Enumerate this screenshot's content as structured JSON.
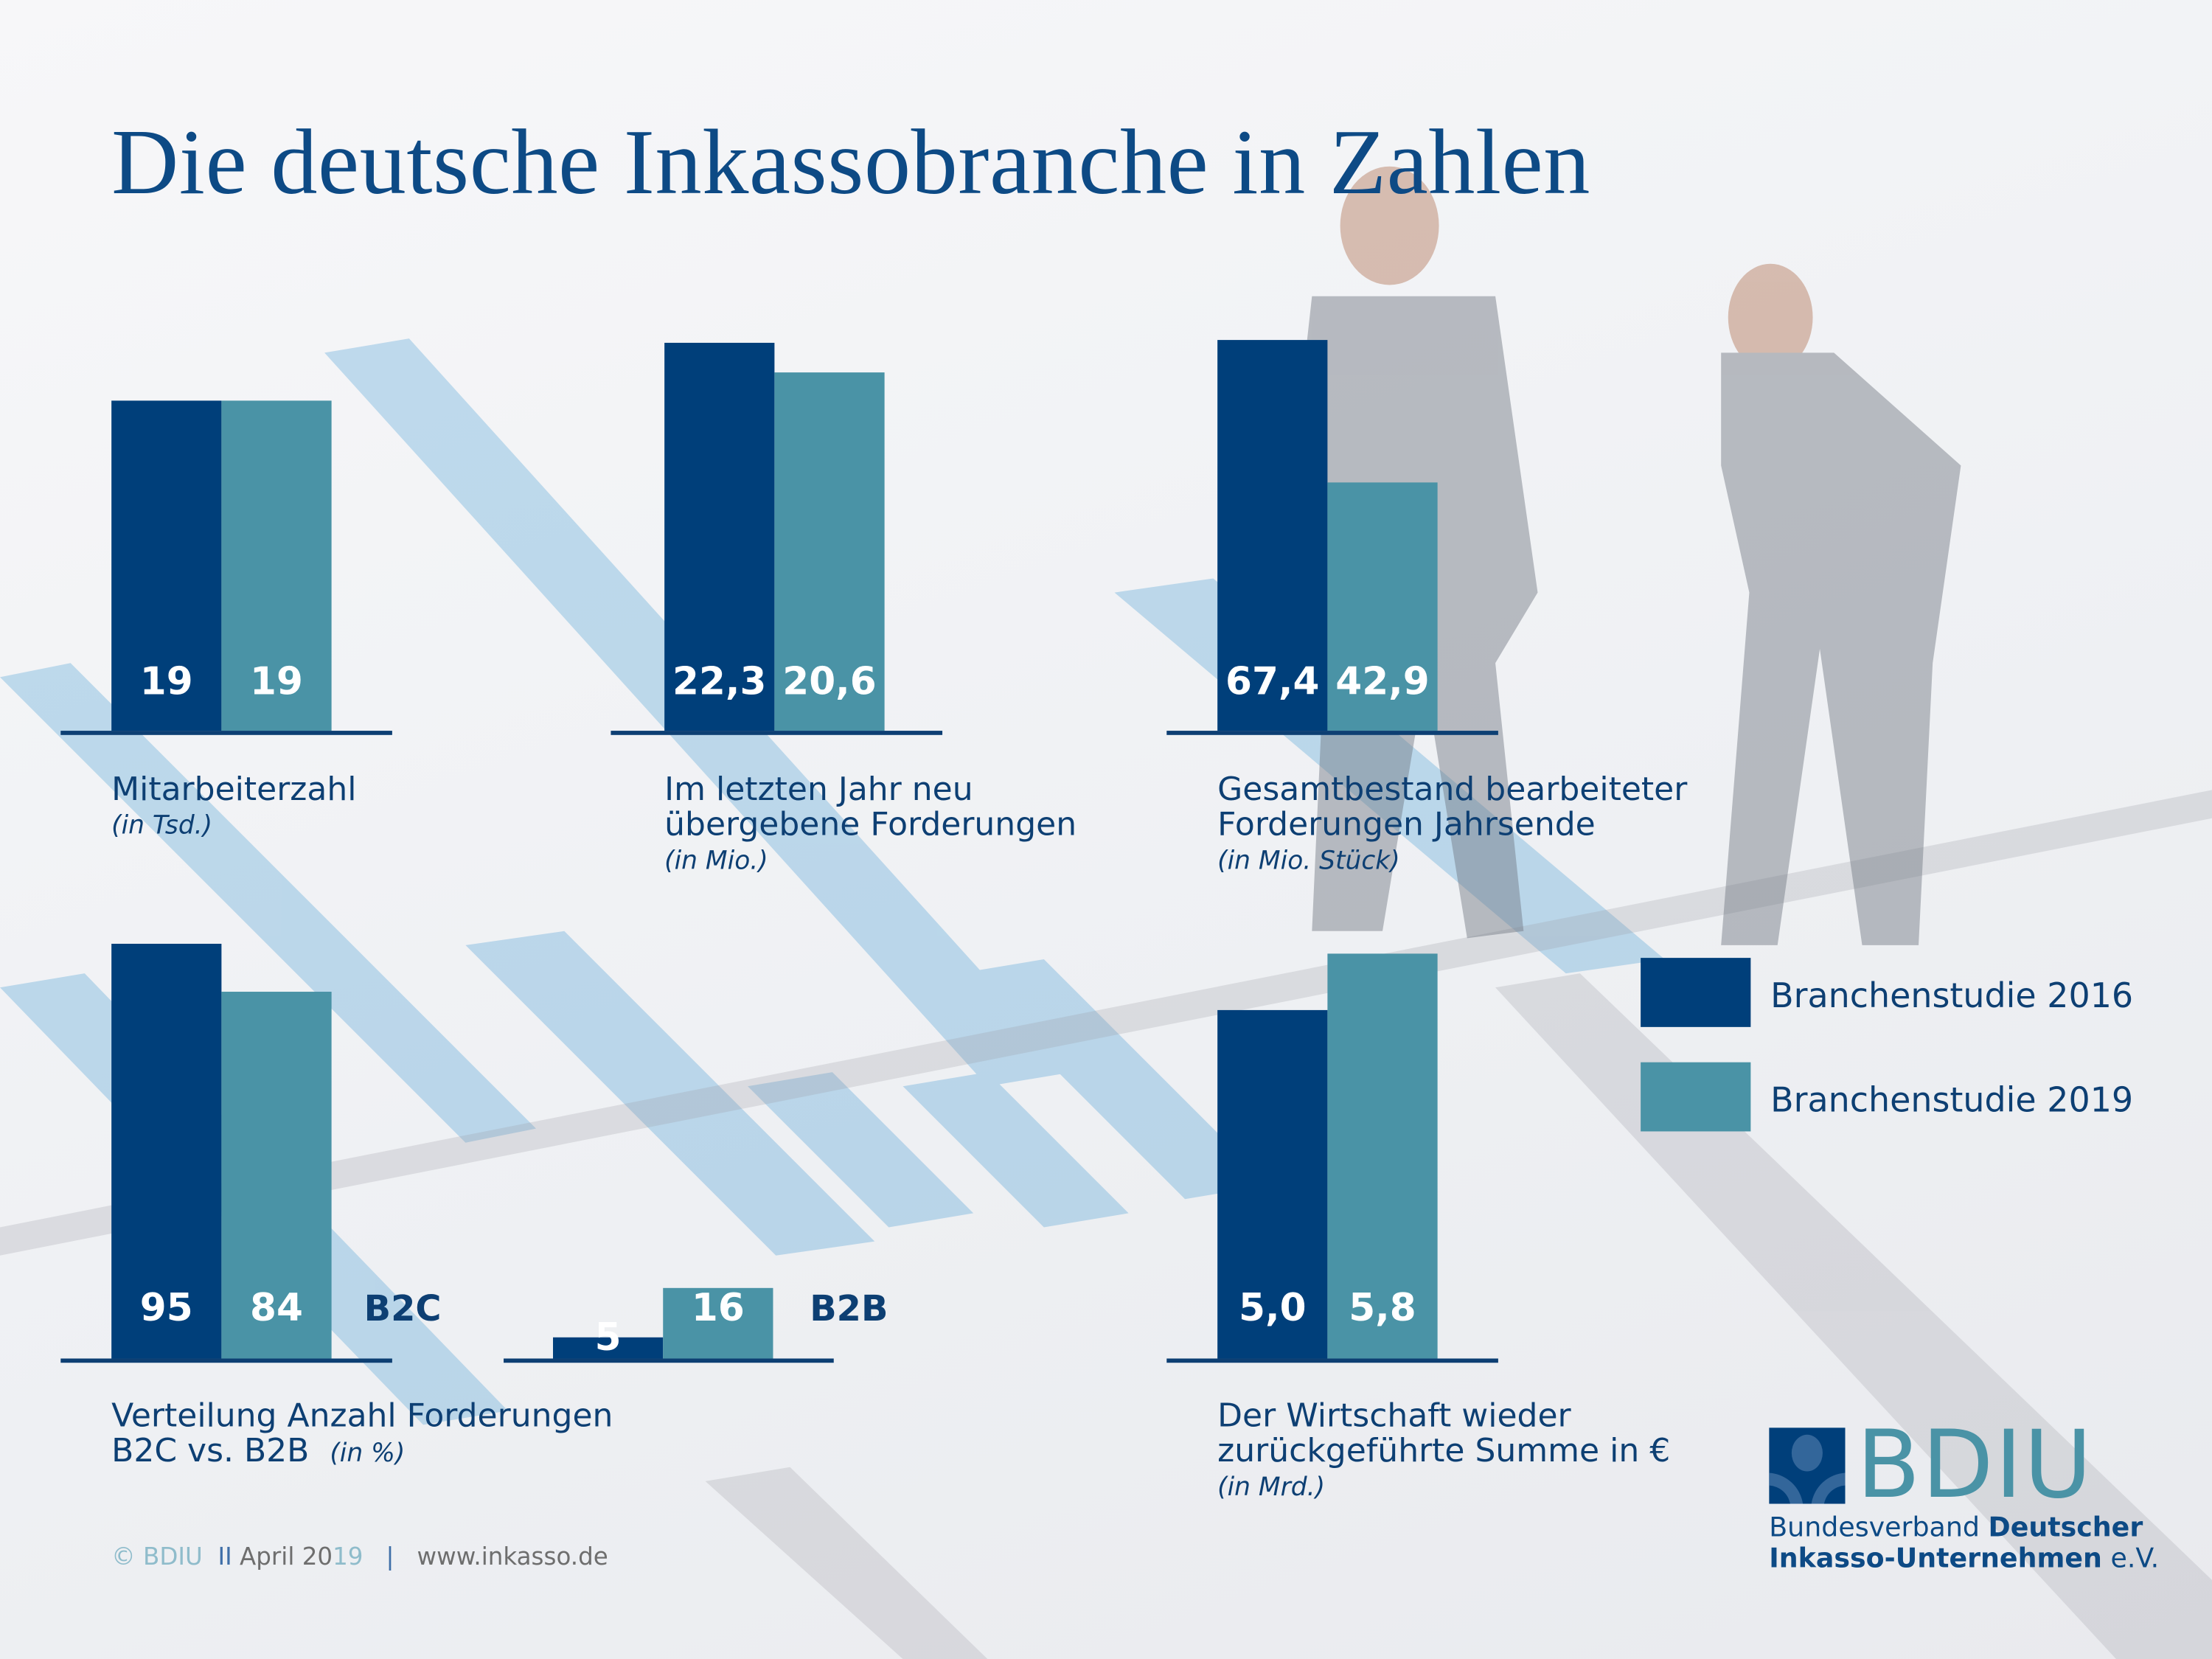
{
  "title": "Die deutsche Inkassobranche in Zahlen",
  "colors": {
    "study_2016": "#003f7a",
    "study_2019": "#4a93a6",
    "text": "#0d3f73"
  },
  "legend": {
    "items": [
      "Branchenstudie 2016",
      "Branchenstudie 2019"
    ],
    "placement": "right"
  },
  "chart_data": [
    {
      "type": "bar",
      "title": "Mitarbeiterzahl",
      "unit": "(in Tsd.)",
      "categories": [
        "Branchenstudie 2016",
        "Branchenstudie 2019"
      ],
      "values": [
        19,
        19
      ],
      "labels": [
        "19",
        "19"
      ]
    },
    {
      "type": "bar",
      "title": "Im letzten Jahr neu übergebene Forderungen",
      "title_lines": [
        "Im letzten Jahr neu",
        "übergebene Forderungen"
      ],
      "unit": "(in Mio.)",
      "categories": [
        "Branchenstudie 2016",
        "Branchenstudie 2019"
      ],
      "values": [
        22.3,
        20.6
      ],
      "labels": [
        "22,3",
        "20,6"
      ]
    },
    {
      "type": "bar",
      "title": "Gesamtbestand bearbeiteter Forderungen Jahrsende",
      "title_lines": [
        "Gesamtbestand bearbeiteter",
        "Forderungen Jahrsende"
      ],
      "unit": "(in Mio. Stück)",
      "categories": [
        "Branchenstudie 2016",
        "Branchenstudie 2019"
      ],
      "values": [
        67.4,
        42.9
      ],
      "labels": [
        "67,4",
        "42,9"
      ]
    },
    {
      "type": "bar",
      "title": "Verteilung Anzahl Forderungen B2C vs. B2B",
      "title_lines": [
        "Verteilung Anzahl Forderungen",
        "B2C vs. B2B"
      ],
      "unit": "(in %)",
      "groups": [
        {
          "name": "B2C",
          "categories": [
            "Branchenstudie 2016",
            "Branchenstudie 2019"
          ],
          "values": [
            95,
            84
          ],
          "labels": [
            "95",
            "84"
          ]
        },
        {
          "name": "B2B",
          "categories": [
            "Branchenstudie 2016",
            "Branchenstudie 2019"
          ],
          "values": [
            5,
            16
          ],
          "labels": [
            "5",
            "16"
          ]
        }
      ]
    },
    {
      "type": "bar",
      "title": "Der Wirtschaft wieder zurückgeführte Summe in €",
      "title_lines": [
        "Der Wirtschaft wieder",
        "zurückgeführte Summe in €"
      ],
      "unit": "(in Mrd.)",
      "categories": [
        "Branchenstudie 2016",
        "Branchenstudie 2019"
      ],
      "values": [
        5.0,
        5.8
      ],
      "labels": [
        "5,0",
        "5,8"
      ]
    }
  ],
  "footer": {
    "copyright": "© BDIU",
    "separator1": "II",
    "date_prefix": "April 20",
    "date_suffix": "19",
    "separator2": "|",
    "url": "www.inkasso.de"
  },
  "logo": {
    "word": "BDIU",
    "line1_light": "Bundesverband",
    "line1_bold": "Deutscher",
    "line2_bold": "Inkasso-Unternehmen",
    "line2_light": "e.V."
  }
}
